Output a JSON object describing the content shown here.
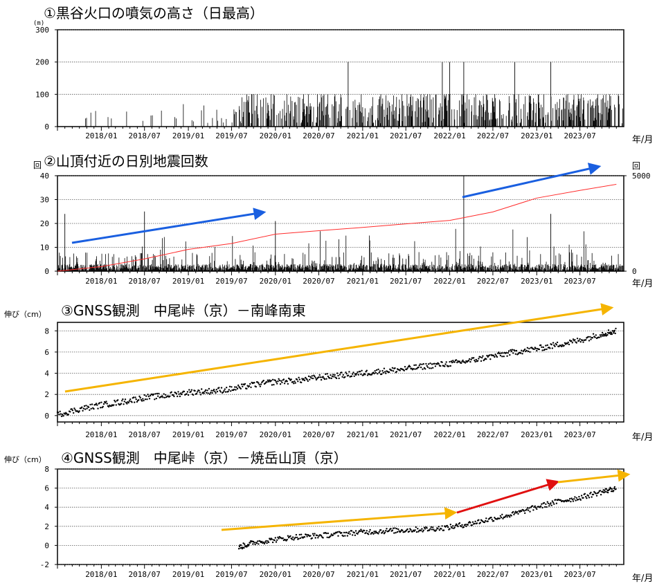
{
  "time_axis": {
    "start": "2017/07",
    "end": "2023/12",
    "tick_labels": [
      "2018/01",
      "2018/07",
      "2019/01",
      "2019/07",
      "2020/01",
      "2020/07",
      "2021/01",
      "2021/07",
      "2022/01",
      "2022/07",
      "2023/01",
      "2023/07"
    ],
    "unit_label": "年/月"
  },
  "chart_data": [
    {
      "type": "bar",
      "title": "①黒谷火口の噴気の高さ（日最高）",
      "ylabel": "(m)",
      "ylim": [
        0,
        300
      ],
      "yticks": [
        0,
        100,
        200,
        300
      ],
      "grid": true,
      "series": [
        {
          "values_by_period_approx": {
            "2017-07..2019-06": "0–80, sparse",
            "2019-07..2021-06": "0–100, daily",
            "2021-07..2023-12": "0–100, daily"
          },
          "peaks": [
            {
              "x": "2020-11",
              "y": 200
            },
            {
              "x": "2021-12",
              "y": 200
            },
            {
              "x": "2022-01",
              "y": 200
            },
            {
              "x": "2022-03",
              "y": 200
            },
            {
              "x": "2022-10",
              "y": 200
            },
            {
              "x": "2023-03",
              "y": 200
            }
          ]
        }
      ]
    },
    {
      "type": "bar",
      "title": "②山頂付近の日別地震回数",
      "ylabel": "回",
      "ylim": [
        0,
        40
      ],
      "yticks": [
        0,
        10,
        20,
        30,
        40
      ],
      "y2label": "回",
      "y2lim": [
        0,
        5000
      ],
      "y2ticks": [
        0,
        5000
      ],
      "grid": true,
      "series": [
        {
          "type": "bar",
          "peaks": [
            {
              "x": "2017-08",
              "y": 24
            },
            {
              "x": "2018-07",
              "y": 25
            },
            {
              "x": "2020-01",
              "y": 21
            },
            {
              "x": "2022-03",
              "y": 40
            },
            {
              "x": "2023-03",
              "y": 24
            }
          ]
        },
        {
          "type": "line",
          "axis": "right",
          "color": "#ff2a2a",
          "x": [
            "2017-07",
            "2018-01",
            "2018-07",
            "2019-01",
            "2019-07",
            "2020-01",
            "2020-07",
            "2021-01",
            "2021-07",
            "2022-01",
            "2022-07",
            "2023-01",
            "2023-07",
            "2023-12"
          ],
          "y": [
            0,
            240,
            640,
            1140,
            1450,
            1940,
            2120,
            2290,
            2480,
            2660,
            3100,
            3830,
            4230,
            4550
          ]
        }
      ],
      "annotations": [
        {
          "type": "arrow",
          "color": "#1a5fe0"
        },
        {
          "type": "arrow",
          "color": "#1a5fe0"
        }
      ]
    },
    {
      "type": "scatter",
      "title": "③GNSS観測　中尾峠（京）－南峰南東",
      "ylabel": "伸び（cm）",
      "ylim": [
        -0.6,
        8.8
      ],
      "yticks": [
        0,
        2,
        4,
        6,
        8
      ],
      "grid": true,
      "series": [
        {
          "x": [
            "2017-07",
            "2017-10",
            "2018-01",
            "2018-04",
            "2018-07",
            "2018-10",
            "2019-01",
            "2019-04",
            "2019-07",
            "2019-10",
            "2020-01",
            "2020-04",
            "2020-07",
            "2020-10",
            "2021-01",
            "2021-04",
            "2021-07",
            "2021-10",
            "2022-01",
            "2022-04",
            "2022-07",
            "2022-10",
            "2023-01",
            "2023-04",
            "2023-07",
            "2023-10",
            "2023-12"
          ],
          "y": [
            0.1,
            0.6,
            1.0,
            1.3,
            1.7,
            1.9,
            2.2,
            2.3,
            2.5,
            2.9,
            3.2,
            3.3,
            3.6,
            3.8,
            4.0,
            4.2,
            4.4,
            4.7,
            4.9,
            5.2,
            5.6,
            6.0,
            6.3,
            6.7,
            7.1,
            7.7,
            8.0
          ]
        }
      ],
      "annotations": [
        {
          "type": "arrow",
          "color": "#f5b400",
          "from": [
            "2017-07",
            2.0
          ],
          "to": [
            "2023-12",
            8.6
          ]
        }
      ]
    },
    {
      "type": "scatter",
      "title": "④GNSS観測　中尾峠（京）－焼岳山頂（京）",
      "ylabel": "伸び（cm）",
      "ylim": [
        -2,
        8
      ],
      "yticks": [
        -2,
        0,
        2,
        4,
        6,
        8
      ],
      "grid": true,
      "series": [
        {
          "x": [
            "2019-08",
            "2019-10",
            "2020-01",
            "2020-04",
            "2020-07",
            "2020-10",
            "2021-01",
            "2021-04",
            "2021-07",
            "2021-10",
            "2022-01",
            "2022-04",
            "2022-07",
            "2022-10",
            "2023-01",
            "2023-04",
            "2023-07",
            "2023-10",
            "2023-12"
          ],
          "y": [
            -0.2,
            0.3,
            0.6,
            0.9,
            1.0,
            1.2,
            1.4,
            1.5,
            1.6,
            1.7,
            1.9,
            2.3,
            2.8,
            3.3,
            4.0,
            4.6,
            5.0,
            5.6,
            6.0
          ]
        }
      ],
      "annotations": [
        {
          "type": "arrow",
          "color": "#f5b400",
          "from": [
            "2019-07",
            1.8
          ],
          "to": [
            "2022-03",
            3.4
          ]
        },
        {
          "type": "arrow",
          "color": "#e01010",
          "from": [
            "2022-03",
            3.4
          ],
          "to": [
            "2023-03",
            6.7
          ]
        },
        {
          "type": "arrow",
          "color": "#f5b400",
          "from": [
            "2023-03",
            6.7
          ],
          "to": [
            "2023-12",
            7.6
          ]
        }
      ]
    }
  ]
}
